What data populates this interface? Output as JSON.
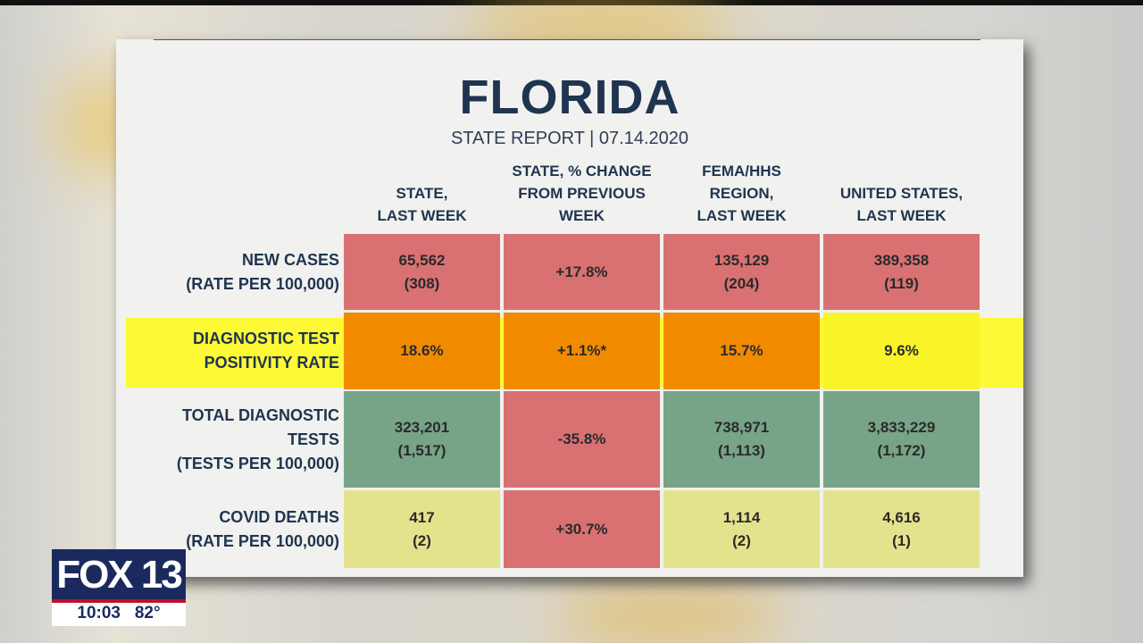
{
  "report": {
    "title": "FLORIDA",
    "subtitle": "STATE REPORT | 07.14.2020",
    "columns": [
      "STATE,\nLAST WEEK",
      "STATE, % CHANGE\nFROM PREVIOUS\nWEEK",
      "FEMA/HHS\nREGION,\nLAST WEEK",
      "UNITED STATES,\nLAST WEEK"
    ],
    "rows": [
      {
        "label": "NEW CASES\n(RATE PER 100,000)",
        "cells": [
          "65,562\n(308)",
          "+17.8%",
          "135,129\n(204)",
          "389,358\n(119)"
        ],
        "colors": [
          "#d97173",
          "#d97173",
          "#d97173",
          "#d97173"
        ]
      },
      {
        "label": "DIAGNOSTIC TEST\nPOSITIVITY RATE",
        "cells": [
          "18.6%",
          "+1.1%*",
          "15.7%",
          "9.6%"
        ],
        "colors": [
          "#f28a00",
          "#f28a00",
          "#f28a00",
          "#f9f328"
        ],
        "highlighted": true
      },
      {
        "label": "TOTAL DIAGNOSTIC\nTESTS\n(TESTS PER 100,000)",
        "cells": [
          "323,201\n(1,517)",
          "-35.8%",
          "738,971\n(1,113)",
          "3,833,229\n(1,172)"
        ],
        "colors": [
          "#77a487",
          "#d97173",
          "#77a487",
          "#77a487"
        ]
      },
      {
        "label": "COVID DEATHS\n(RATE PER 100,000)",
        "cells": [
          "417\n(2)",
          "+30.7%",
          "1,114\n(2)",
          "4,616\n(1)"
        ],
        "colors": [
          "#e4e38d",
          "#d97173",
          "#e4e38d",
          "#e4e38d"
        ]
      }
    ]
  },
  "station": {
    "logo": "FOX 13",
    "time": "10:03",
    "temperature": "82°",
    "brand_color": "#1b2a5e"
  }
}
